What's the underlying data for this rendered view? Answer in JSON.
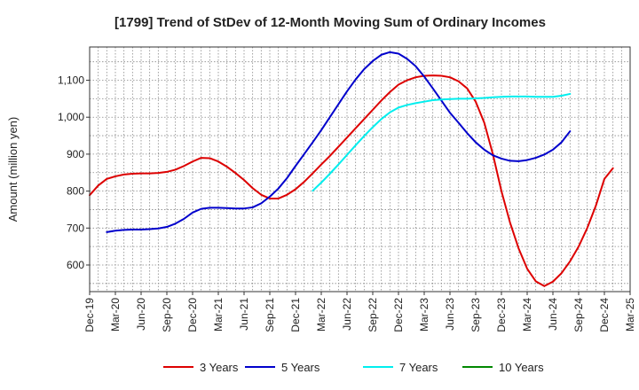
{
  "chart_data": {
    "type": "line",
    "title": "[1799]  Trend of StDev of 12-Month Moving Sum of Ordinary Incomes",
    "ylabel": "Amount (million yen)",
    "xlabel": "",
    "ylim": [
      528,
      1190
    ],
    "yticks": [
      600,
      700,
      800,
      900,
      1000,
      1100
    ],
    "ytick_labels": [
      "600",
      "700",
      "800",
      "900",
      "1,000",
      "1,100"
    ],
    "x_start": "Dec-19",
    "x_months_total": 63,
    "xticks": [
      {
        "label": "Dec-19",
        "m": 0
      },
      {
        "label": "Mar-20",
        "m": 3
      },
      {
        "label": "Jun-20",
        "m": 6
      },
      {
        "label": "Sep-20",
        "m": 9
      },
      {
        "label": "Dec-20",
        "m": 12
      },
      {
        "label": "Mar-21",
        "m": 15
      },
      {
        "label": "Jun-21",
        "m": 18
      },
      {
        "label": "Sep-21",
        "m": 21
      },
      {
        "label": "Dec-21",
        "m": 24
      },
      {
        "label": "Mar-22",
        "m": 27
      },
      {
        "label": "Jun-22",
        "m": 30
      },
      {
        "label": "Sep-22",
        "m": 33
      },
      {
        "label": "Dec-22",
        "m": 36
      },
      {
        "label": "Mar-23",
        "m": 39
      },
      {
        "label": "Jun-23",
        "m": 42
      },
      {
        "label": "Sep-23",
        "m": 45
      },
      {
        "label": "Dec-23",
        "m": 48
      },
      {
        "label": "Mar-24",
        "m": 51
      },
      {
        "label": "Jun-24",
        "m": 54
      },
      {
        "label": "Sep-24",
        "m": 57
      },
      {
        "label": "Dec-24",
        "m": 60
      },
      {
        "label": "Mar-25",
        "m": 63
      }
    ],
    "grid": true,
    "legend_position": "bottom",
    "series": [
      {
        "name": "3 Years",
        "color": "#dd0000",
        "start_month": 0,
        "values": [
          789,
          815,
          833,
          840,
          845,
          847,
          848,
          848,
          849,
          852,
          858,
          868,
          880,
          890,
          889,
          880,
          866,
          849,
          830,
          808,
          790,
          780,
          780,
          790,
          805,
          825,
          848,
          872,
          895,
          920,
          945,
          970,
          995,
          1020,
          1045,
          1068,
          1088,
          1100,
          1108,
          1112,
          1113,
          1112,
          1108,
          1097,
          1078,
          1042,
          985,
          900,
          800,
          715,
          645,
          590,
          556,
          543,
          555,
          578,
          610,
          650,
          700,
          760,
          833,
          862
        ]
      },
      {
        "name": "5 Years",
        "color": "#0000cc",
        "start_month": 2,
        "values": [
          689,
          693,
          695,
          696,
          696,
          697,
          699,
          703,
          712,
          725,
          742,
          752,
          755,
          755,
          754,
          753,
          753,
          756,
          767,
          785,
          807,
          835,
          868,
          900,
          932,
          965,
          1000,
          1035,
          1070,
          1102,
          1130,
          1152,
          1169,
          1176,
          1172,
          1158,
          1138,
          1110,
          1078,
          1045,
          1012,
          985,
          957,
          932,
          912,
          897,
          888,
          882,
          881,
          884,
          890,
          899,
          912,
          932,
          962
        ]
      },
      {
        "name": "7 Years",
        "color": "#00eeee",
        "start_month": 26,
        "values": [
          801,
          823,
          847,
          872,
          898,
          924,
          949,
          973,
          995,
          1013,
          1026,
          1033,
          1038,
          1042,
          1046,
          1048,
          1049,
          1050,
          1050,
          1051,
          1052,
          1054,
          1055,
          1056,
          1056,
          1056,
          1055,
          1055,
          1055,
          1058,
          1063
        ]
      },
      {
        "name": "10 Years",
        "color": "#008800",
        "start_month": 0,
        "values": []
      }
    ]
  }
}
